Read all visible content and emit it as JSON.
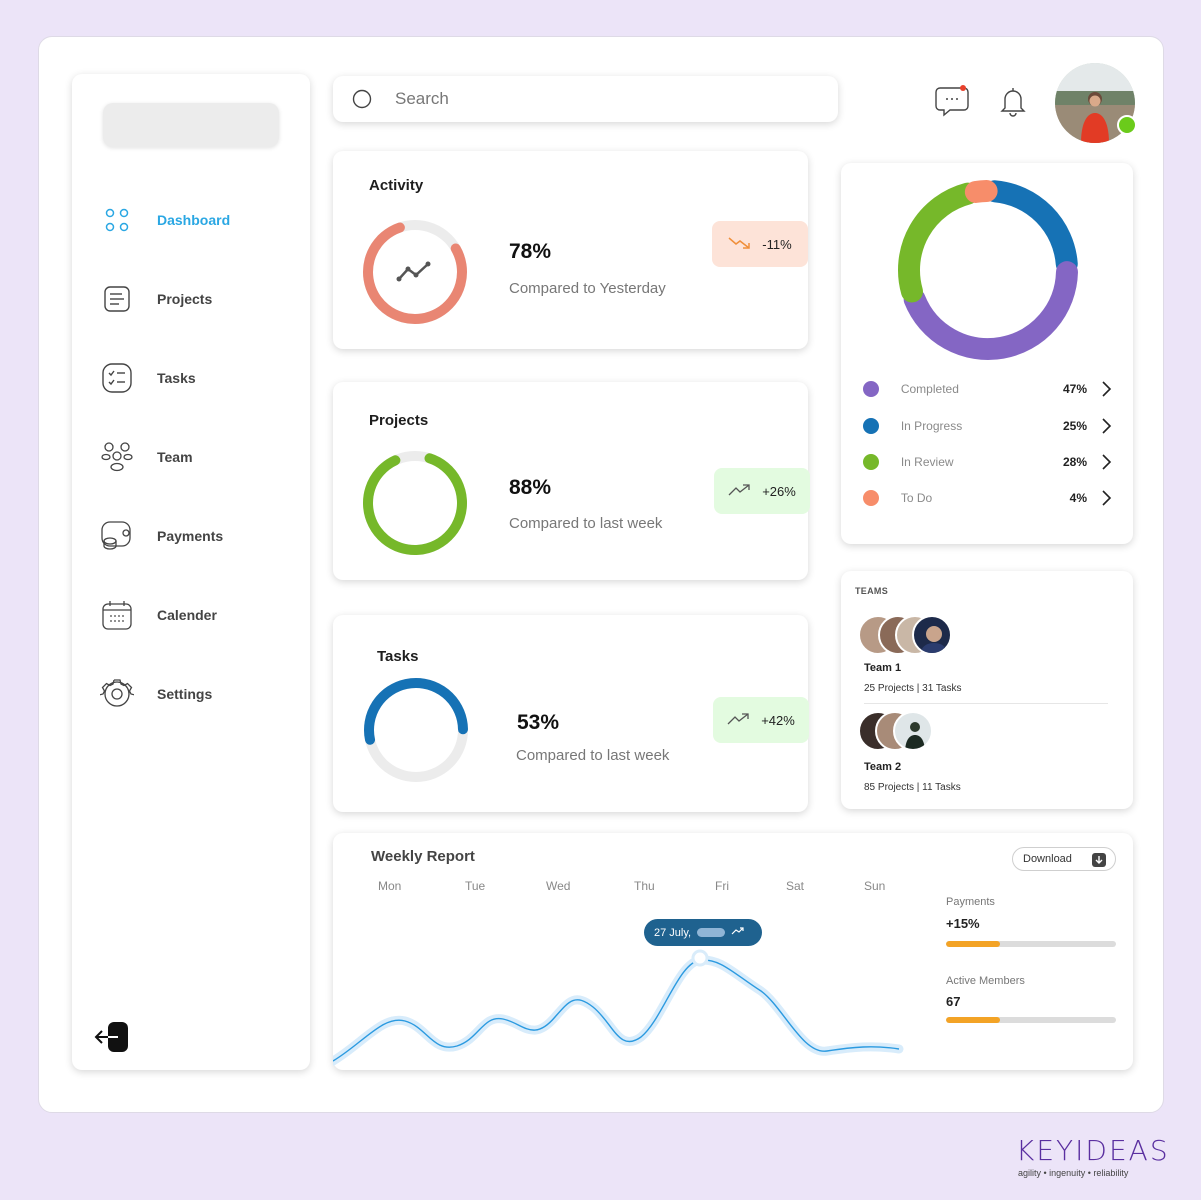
{
  "sidebar": {
    "items": [
      {
        "label": "Dashboard",
        "icon": "grid-dots-icon",
        "active": true
      },
      {
        "label": "Projects",
        "icon": "document-icon"
      },
      {
        "label": "Tasks",
        "icon": "checklist-icon"
      },
      {
        "label": "Team",
        "icon": "people-icon"
      },
      {
        "label": "Payments",
        "icon": "coins-icon"
      },
      {
        "label": "Calender",
        "icon": "calendar-icon"
      },
      {
        "label": "Settings",
        "icon": "gear-icon"
      }
    ],
    "logout_icon": "logout-icon"
  },
  "search": {
    "placeholder": "Search"
  },
  "stats": [
    {
      "title": "Activity",
      "value": "78%",
      "subtitle": "Compared to Yesterday",
      "change": "-11%",
      "trend": "down",
      "progress": 0.78,
      "color": "#e98673"
    },
    {
      "title": "Projects",
      "value": "88%",
      "subtitle": "Compared to last week",
      "change": "+26%",
      "trend": "up",
      "progress": 0.88,
      "color": "#76b82a"
    },
    {
      "title": "Tasks",
      "value": "53%",
      "subtitle": "Compared to last week",
      "change": "+42%",
      "trend": "up",
      "progress": 0.53,
      "color": "#1672b5"
    }
  ],
  "status": {
    "items": [
      {
        "label": "Completed",
        "pct": "47%",
        "value": 47,
        "color": "#8466c4"
      },
      {
        "label": "In Progress",
        "pct": "25%",
        "value": 25,
        "color": "#1672b5"
      },
      {
        "label": "In Review",
        "pct": "28%",
        "value": 28,
        "color": "#76b82a"
      },
      {
        "label": "To Do",
        "pct": "4%",
        "value": 4,
        "color": "#f78d6a"
      }
    ]
  },
  "teams": {
    "title": "TEAMS",
    "list": [
      {
        "name": "Team 1",
        "meta": "25 Projects |  31 Tasks"
      },
      {
        "name": "Team 2",
        "meta": "85 Projects |  11 Tasks"
      }
    ]
  },
  "weekly": {
    "title": "Weekly Report",
    "days": [
      "Mon",
      "Tue",
      "Wed",
      "Thu",
      "Fri",
      "Sat",
      "Sun"
    ],
    "download_label": "Download",
    "tooltip": "27 July,",
    "payments": {
      "label": "Payments",
      "value": "+15%",
      "progress": 0.32
    },
    "members": {
      "label": "Active Members",
      "value": "67",
      "progress": 0.32
    }
  },
  "brand": {
    "name": "KEYIDEAS",
    "tagline": "agility  •  ingenuity  •  reliability"
  }
}
